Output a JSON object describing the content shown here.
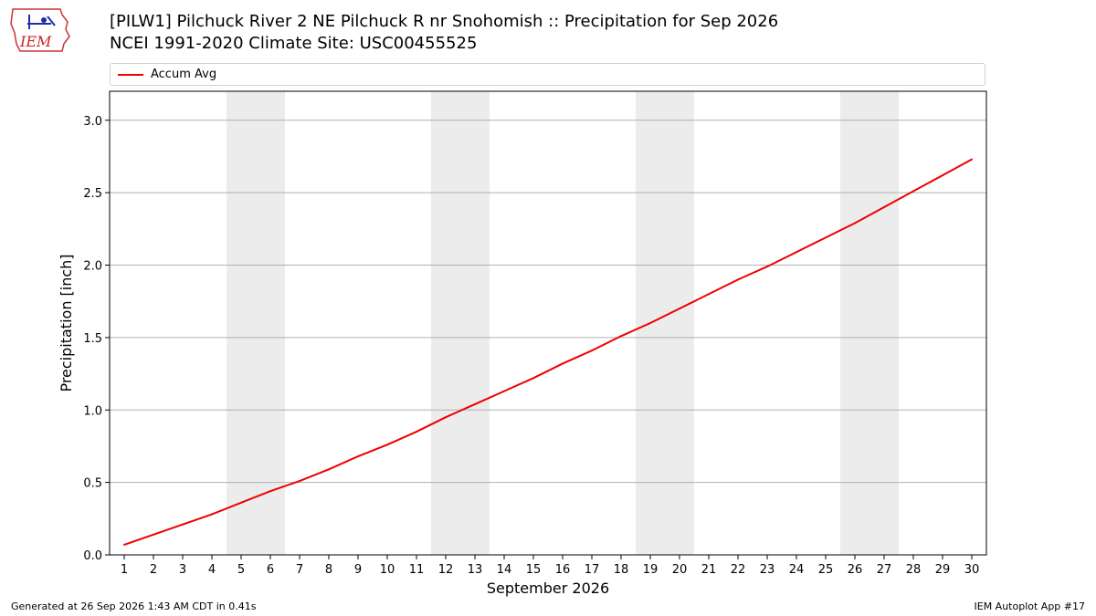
{
  "header": {
    "logo_text": "IEM",
    "title_line1": "[PILW1] Pilchuck River 2 NE Pilchuck R nr Snohomish :: Precipitation for Sep 2026",
    "title_line2": "NCEI 1991-2020 Climate Site: USC00455525"
  },
  "legend": {
    "label": "Accum Avg",
    "color": "#ee0000"
  },
  "footer": {
    "generated": "Generated at 26 Sep 2026 1:43 AM CDT in 0.41s",
    "app": "IEM Autoplot App #17"
  },
  "colors": {
    "line": "#ee0000",
    "weekend_band": "#ececec",
    "grid": "#b0b0b0"
  },
  "chart_data": {
    "type": "line",
    "xlabel": "September 2026",
    "ylabel": "Precipitation [inch]",
    "ylim": [
      0.0,
      3.2
    ],
    "yticks": [
      "0.0",
      "0.5",
      "1.0",
      "1.5",
      "2.0",
      "2.5",
      "3.0"
    ],
    "grid": "horizontal",
    "legend_position": "top",
    "categories": [
      "1",
      "2",
      "3",
      "4",
      "5",
      "6",
      "7",
      "8",
      "9",
      "10",
      "11",
      "12",
      "13",
      "14",
      "15",
      "16",
      "17",
      "18",
      "19",
      "20",
      "21",
      "22",
      "23",
      "24",
      "25",
      "26",
      "27",
      "28",
      "29",
      "30"
    ],
    "weekend_days": [
      [
        5,
        6
      ],
      [
        12,
        13
      ],
      [
        19,
        20
      ],
      [
        26,
        27
      ]
    ],
    "series": [
      {
        "name": "Accum Avg",
        "values": [
          0.07,
          0.14,
          0.21,
          0.28,
          0.36,
          0.44,
          0.51,
          0.59,
          0.68,
          0.76,
          0.85,
          0.95,
          1.04,
          1.13,
          1.22,
          1.32,
          1.41,
          1.51,
          1.6,
          1.7,
          1.8,
          1.9,
          1.99,
          2.09,
          2.19,
          2.29,
          2.4,
          2.51,
          2.62,
          2.73
        ]
      }
    ]
  }
}
